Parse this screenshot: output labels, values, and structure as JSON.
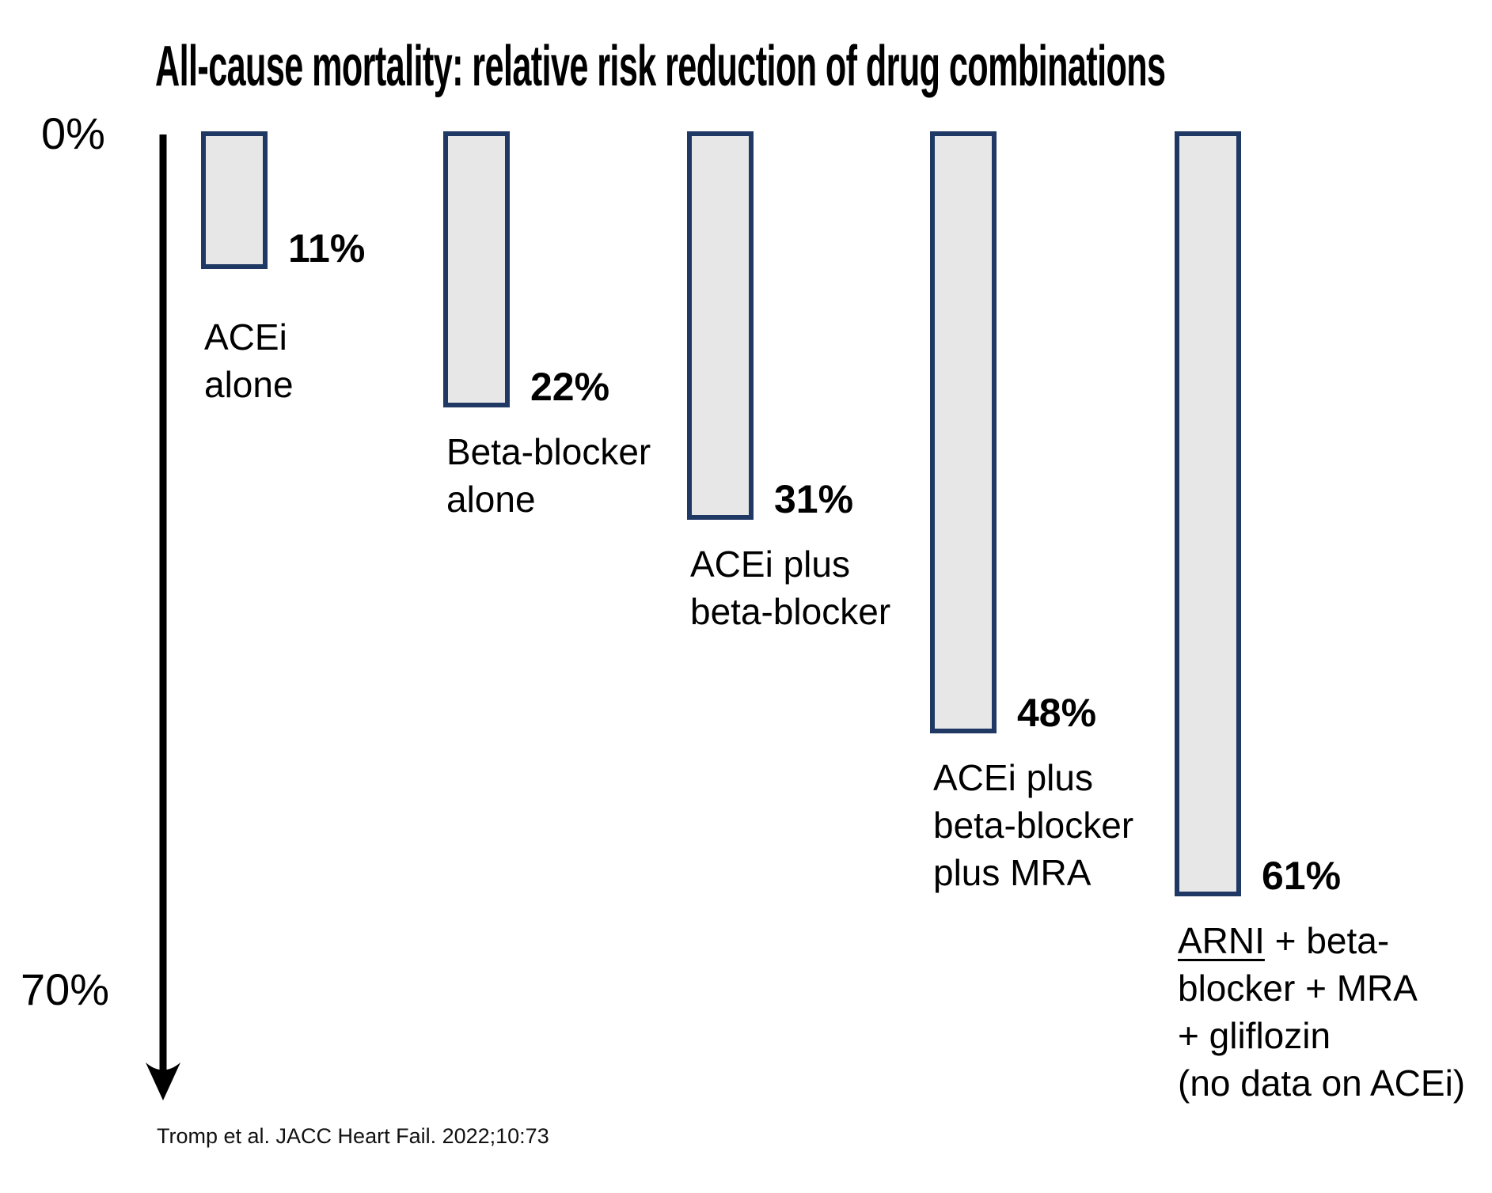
{
  "title": "All-cause mortality: relative risk reduction of drug combinations",
  "citation": "Tromp et al. JACC Heart Fail. 2022;10:73",
  "colors": {
    "bar_fill": "#E7E7E7",
    "bar_border": "#1F3864",
    "arrow": "#000000",
    "text": "#000000"
  },
  "chart_data": {
    "type": "bar",
    "direction": "downward",
    "title": "All-cause mortality: relative risk reduction of drug combinations",
    "categories": [
      "ACEi alone",
      "Beta-blocker alone",
      "ACEi plus beta-blocker",
      "ACEi plus beta-blocker plus MRA",
      "ARNI + beta-blocker + MRA + gliflozin (no data on ACEi)"
    ],
    "values": [
      11,
      22,
      31,
      48,
      61
    ],
    "value_labels": [
      "11%",
      "22%",
      "31%",
      "48%",
      "61%"
    ],
    "axis": {
      "top": "0%",
      "bottom": "70%",
      "min": 0,
      "max": 70,
      "unit": "%"
    },
    "grid": false,
    "legend": false,
    "bars": [
      {
        "pct": 11,
        "pct_label": "11%",
        "label_lines": [
          "ACEi",
          "alone"
        ]
      },
      {
        "pct": 22,
        "pct_label": "22%",
        "label_lines": [
          "Beta-blocker",
          "alone"
        ]
      },
      {
        "pct": 31,
        "pct_label": "31%",
        "label_lines": [
          "ACEi plus",
          "beta-blocker"
        ]
      },
      {
        "pct": 48,
        "pct_label": "48%",
        "label_lines": [
          "ACEi plus",
          "beta-blocker",
          "plus MRA"
        ]
      },
      {
        "pct": 61,
        "pct_label": "61%",
        "label_lines": [
          "ARNI + beta-",
          "blocker + MRA",
          "+ gliflozin",
          "(no data on ACEi)"
        ],
        "underline_word": "ARNI"
      }
    ]
  }
}
